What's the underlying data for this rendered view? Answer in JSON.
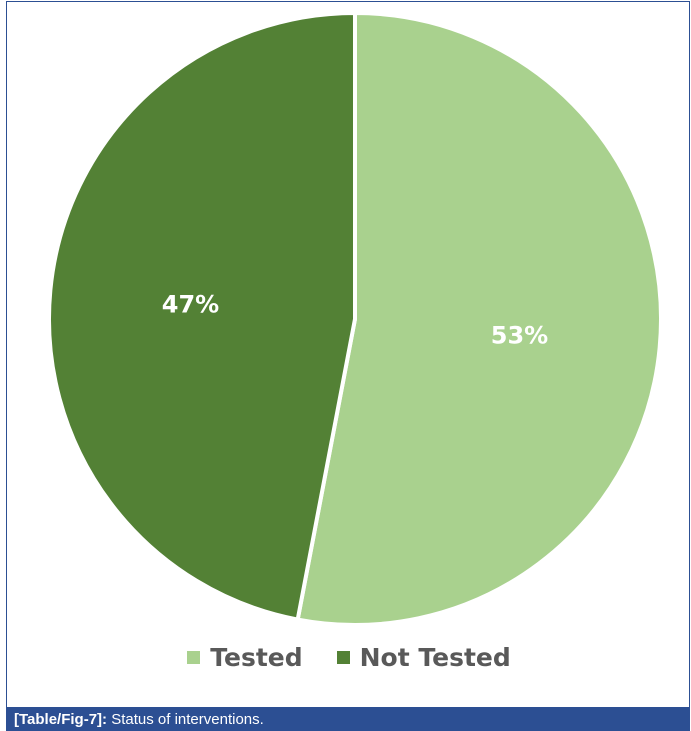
{
  "chart_data": {
    "type": "pie",
    "categories": [
      "Tested",
      "Not Tested"
    ],
    "values": [
      53,
      47
    ],
    "data_labels": [
      "53%",
      "47%"
    ],
    "colors": [
      "#a9d18e",
      "#538135"
    ],
    "slice_border_color": "#ffffff",
    "start": "12 o'clock",
    "direction": "clockwise",
    "legend": {
      "position": "bottom",
      "entries": [
        "Tested",
        "Not Tested"
      ]
    }
  },
  "caption": {
    "label": "[Table/Fig-7]:",
    "text": "Status of interventions."
  },
  "colors": {
    "caption_bar": "#2c4f93",
    "legend_text": "#595959"
  }
}
